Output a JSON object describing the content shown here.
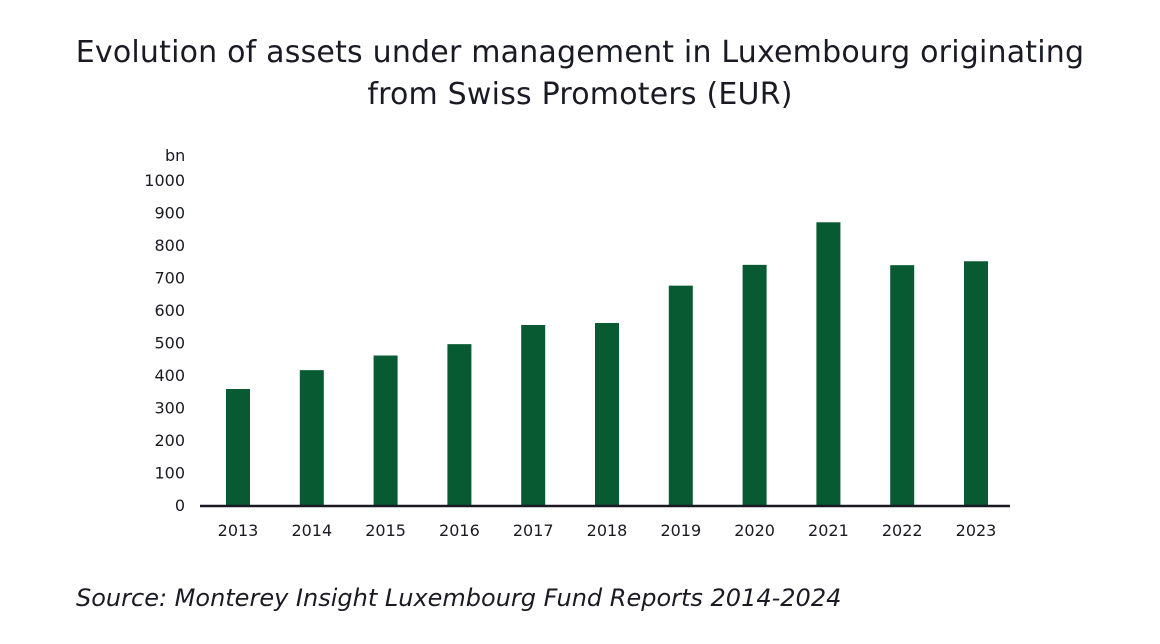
{
  "title": {
    "line1": "Evolution of assets under management in Luxembourg originating",
    "line2": "from Swiss Promoters (EUR)"
  },
  "source": "Source: Monterey Insight Luxembourg Fund Reports 2014-2024",
  "colors": {
    "bar": "#075a32",
    "axis": "#1a1a24",
    "text": "#1a1a24"
  },
  "chart_data": {
    "type": "bar",
    "title": "Evolution of assets under management in Luxembourg originating from Swiss Promoters (EUR)",
    "xlabel": "",
    "ylabel": "bn",
    "categories": [
      "2013",
      "2014",
      "2015",
      "2016",
      "2017",
      "2018",
      "2019",
      "2020",
      "2021",
      "2022",
      "2023"
    ],
    "values": [
      360,
      418,
      463,
      498,
      557,
      563,
      678,
      742,
      873,
      741,
      753
    ],
    "ylim": [
      0,
      1000
    ],
    "yticks": [
      0,
      100,
      200,
      300,
      400,
      500,
      600,
      700,
      800,
      900,
      1000
    ],
    "grid": false,
    "legend": "none"
  }
}
